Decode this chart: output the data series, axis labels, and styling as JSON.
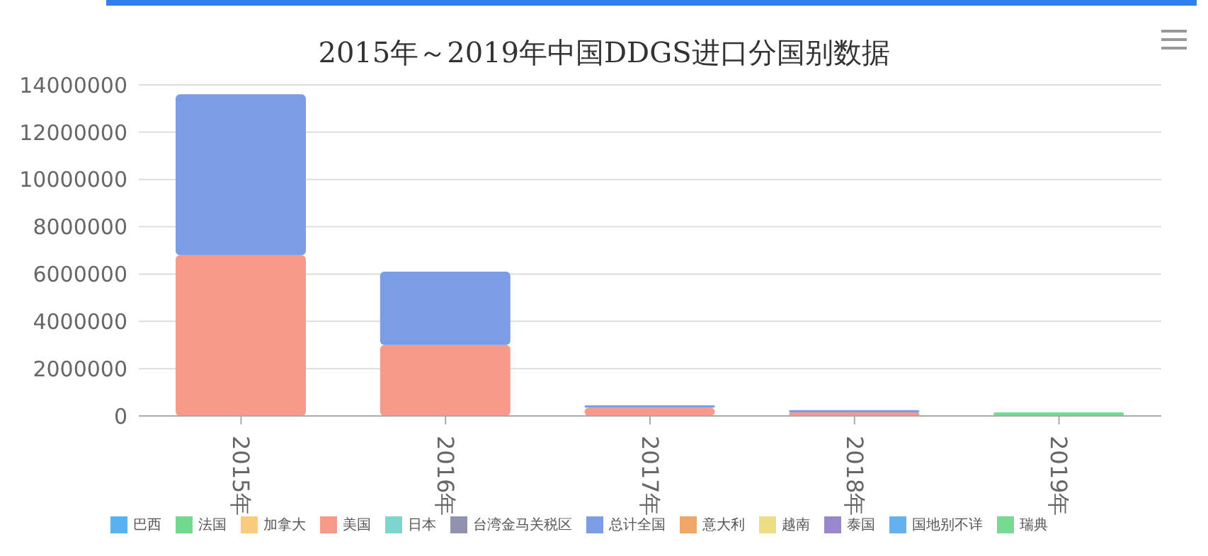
{
  "chart_data": {
    "type": "bar",
    "title": "2015年～2019年中国DDGS进口分国别数据",
    "categories": [
      "2015年",
      "2016年",
      "2017年",
      "2018年",
      "2019年"
    ],
    "stacked": true,
    "series": [
      {
        "name": "巴西",
        "color": "#5ab1ef",
        "values": [
          null,
          null,
          null,
          null,
          null
        ]
      },
      {
        "name": "法国",
        "color": "#72d98e",
        "values": [
          null,
          null,
          null,
          null,
          null
        ]
      },
      {
        "name": "加拿大",
        "color": "#f8cb7f",
        "values": [
          null,
          null,
          null,
          null,
          null
        ]
      },
      {
        "name": "美国",
        "color": "#f89a8a",
        "values": [
          6800000,
          3000000,
          350000,
          150000,
          null
        ]
      },
      {
        "name": "日本",
        "color": "#7cd6cf",
        "values": [
          null,
          null,
          null,
          null,
          null
        ]
      },
      {
        "name": "台湾金马关税区",
        "color": "#9192ab",
        "values": [
          null,
          null,
          null,
          null,
          null
        ]
      },
      {
        "name": "总计全国",
        "color": "#7b9de6",
        "values": [
          6800000,
          3100000,
          100000,
          100000,
          null
        ]
      },
      {
        "name": "意大利",
        "color": "#efa666",
        "values": [
          null,
          null,
          null,
          null,
          null
        ]
      },
      {
        "name": "越南",
        "color": "#eddd86",
        "values": [
          null,
          null,
          null,
          null,
          null
        ]
      },
      {
        "name": "泰国",
        "color": "#9987ce",
        "values": [
          null,
          null,
          null,
          null,
          null
        ]
      },
      {
        "name": "国地别不详",
        "color": "#63b2ee",
        "values": [
          null,
          null,
          null,
          null,
          null
        ]
      },
      {
        "name": "瑞典",
        "color": "#76da91",
        "values": [
          null,
          null,
          null,
          null,
          150000
        ]
      }
    ],
    "ylim": [
      0,
      14000000
    ],
    "yticks": [
      0,
      2000000,
      4000000,
      6000000,
      8000000,
      10000000,
      12000000,
      14000000
    ],
    "grid": "y",
    "legend": "bottom"
  }
}
